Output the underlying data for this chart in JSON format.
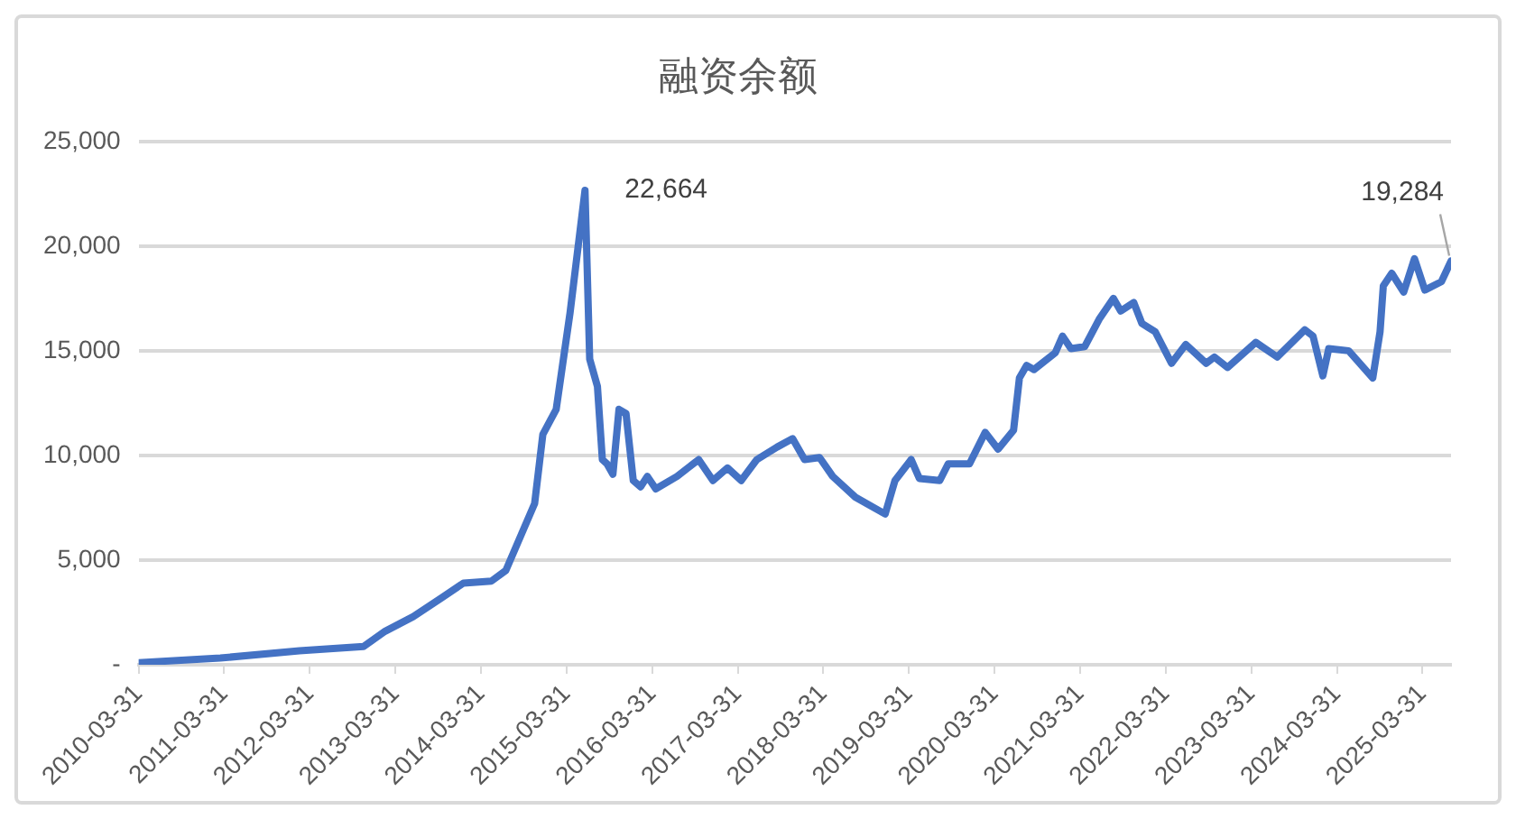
{
  "chart_data": {
    "type": "line",
    "title": "融资余额",
    "x": [
      "2010-03-31",
      "2011-03-15",
      "2012-02-15",
      "2012-11-15",
      "2013-02-15",
      "2013-06-15",
      "2013-10-15",
      "2014-01-15",
      "2014-05-15",
      "2014-07-15",
      "2014-11-15",
      "2014-12-20",
      "2015-02-15",
      "2015-04-15",
      "2015-06-18",
      "2015-07-08",
      "2015-08-10",
      "2015-08-31",
      "2015-09-20",
      "2015-10-15",
      "2015-11-10",
      "2015-12-10",
      "2016-01-10",
      "2016-02-10",
      "2016-03-10",
      "2016-04-15",
      "2016-07-15",
      "2016-10-15",
      "2016-12-15",
      "2017-02-15",
      "2017-04-15",
      "2017-06-20",
      "2017-09-15",
      "2017-11-20",
      "2018-01-10",
      "2018-03-15",
      "2018-05-10",
      "2018-08-15",
      "2018-12-20",
      "2019-01-31",
      "2019-04-10",
      "2019-05-15",
      "2019-08-10",
      "2019-09-15",
      "2019-12-15",
      "2020-02-20",
      "2020-04-15",
      "2020-06-20",
      "2020-07-15",
      "2020-08-15",
      "2020-09-15",
      "2020-12-15",
      "2021-01-15",
      "2021-02-20",
      "2021-04-20",
      "2021-06-20",
      "2021-08-20",
      "2021-09-20",
      "2021-11-15",
      "2021-12-20",
      "2022-02-15",
      "2022-04-25",
      "2022-06-25",
      "2022-09-20",
      "2022-10-25",
      "2022-12-20",
      "2023-04-20",
      "2023-07-20",
      "2023-11-15",
      "2023-12-20",
      "2024-01-31",
      "2024-02-25",
      "2024-05-20",
      "2024-08-31",
      "2024-10-01",
      "2024-10-15",
      "2024-11-20",
      "2025-01-10",
      "2025-02-25",
      "2025-04-10",
      "2025-06-20",
      "2025-07-31"
    ],
    "values": [
      100,
      320,
      670,
      870,
      1600,
      2300,
      3200,
      3900,
      4000,
      4500,
      7700,
      11000,
      12200,
      16800,
      22664,
      14600,
      13300,
      9800,
      9600,
      9100,
      12200,
      12000,
      8800,
      8500,
      9000,
      8400,
      9000,
      9800,
      8800,
      9400,
      8800,
      9800,
      10400,
      10800,
      9800,
      9900,
      9000,
      8000,
      7200,
      8800,
      9800,
      8900,
      8800,
      9600,
      9600,
      11100,
      10300,
      11200,
      13700,
      14300,
      14100,
      14900,
      15700,
      15100,
      15200,
      16500,
      17500,
      16900,
      17300,
      16300,
      15900,
      14400,
      15300,
      14400,
      14700,
      14200,
      15400,
      14700,
      16000,
      15700,
      13800,
      15100,
      15000,
      13700,
      15900,
      18100,
      18700,
      17800,
      19400,
      17900,
      18300,
      19284
    ],
    "color": "#4472c4",
    "xlim": [
      "2010-03-31",
      "2025-07-31"
    ],
    "xticks": [
      "2010-03-31",
      "2011-03-31",
      "2012-03-31",
      "2013-03-31",
      "2014-03-31",
      "2015-03-31",
      "2016-03-31",
      "2017-03-31",
      "2018-03-31",
      "2019-03-31",
      "2020-03-31",
      "2021-03-31",
      "2022-03-31",
      "2023-03-31",
      "2024-03-31",
      "2025-03-31"
    ],
    "ylim": [
      0,
      25000
    ],
    "yticks": [
      {
        "value": 0,
        "label": "-"
      },
      {
        "value": 5000,
        "label": "5,000"
      },
      {
        "value": 10000,
        "label": "10,000"
      },
      {
        "value": 15000,
        "label": "15,000"
      },
      {
        "value": 20000,
        "label": "20,000"
      },
      {
        "value": 25000,
        "label": "25,000"
      }
    ],
    "grid": "y",
    "marker": "none",
    "line_style": "solid",
    "annotations": [
      {
        "text": "22,664",
        "x": "2015-06-18",
        "y": 22664
      },
      {
        "text": "19,284",
        "x": "2025-07-31",
        "y": 19284
      }
    ]
  }
}
